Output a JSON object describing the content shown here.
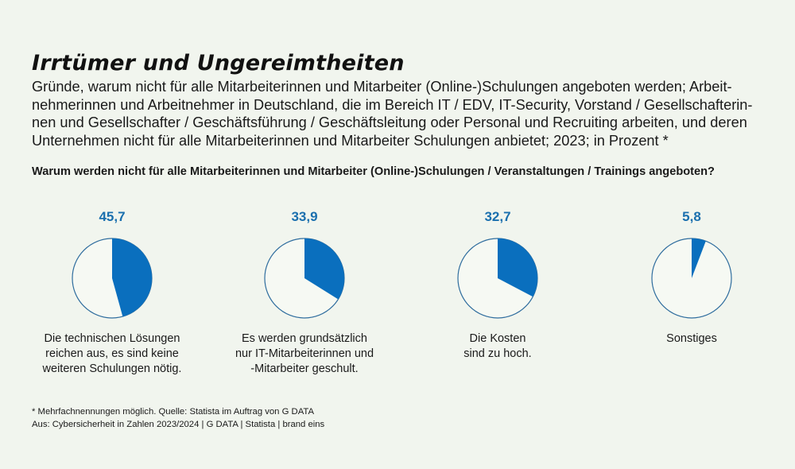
{
  "header": {
    "title": "Irrtümer und Ungereimtheiten",
    "subtitle_lines": [
      "Gründe, warum nicht für alle Mitarbeiterinnen und Mitarbeiter (Online-)Schulungen angeboten werden; Arbeit-",
      "nehmerinnen und Arbeitnehmer in Deutschland, die im Bereich IT / EDV, IT-Security, Vorstand / Gesellschafterin-",
      "nen und Gesellschafter / Geschäftsführung / Geschäftsleitung oder Personal und Recruiting arbeiten, und deren",
      "Unternehmen nicht für alle Mitarbeiterinnen und Mitarbeiter Schulungen anbietet; 2023; in Prozent *"
    ]
  },
  "question": "Warum werden nicht für alle Mitarbeiterinnen und Mitarbeiter (Online-)Schulungen / Veranstaltungen / Trainings angeboten?",
  "colors": {
    "accent": "#0a6fbe",
    "value_text": "#1a6fae",
    "background": "#f1f5ee",
    "pie_outline": "#2f6d9e"
  },
  "chart_data": {
    "type": "pie",
    "title": "Warum werden nicht für alle Mitarbeiterinnen und Mitarbeiter (Online-)Schulungen / Veranstaltungen / Trainings angeboten?",
    "unit": "Prozent",
    "series": [
      {
        "name": "Die technischen Lösungen reichen aus, es sind keine weiteren Schulungen nötig.",
        "value": 45.7,
        "value_label": "45,7",
        "label_lines": [
          "Die technischen Lösungen",
          "reichen aus, es sind keine",
          "weiteren Schulungen nötig."
        ]
      },
      {
        "name": "Es werden grundsätzlich nur IT-Mitarbeiterinnen und -Mitarbeiter geschult.",
        "value": 33.9,
        "value_label": "33,9",
        "label_lines": [
          "Es werden grundsätzlich",
          "nur IT-Mitarbeiterinnen und",
          "-Mitarbeiter geschult."
        ]
      },
      {
        "name": "Die Kosten sind zu hoch.",
        "value": 32.7,
        "value_label": "32,7",
        "label_lines": [
          "Die Kosten",
          "sind zu hoch."
        ]
      },
      {
        "name": "Sonstiges",
        "value": 5.8,
        "value_label": "5,8",
        "label_lines": [
          "Sonstiges"
        ]
      }
    ],
    "max": 100
  },
  "footnote": {
    "line1": "* Mehrfachnennungen möglich. Quelle: Statista im Auftrag von G DATA",
    "line2": "Aus: Cybersicherheit in Zahlen 2023/2024 | G DATA | Statista | brand eins"
  }
}
